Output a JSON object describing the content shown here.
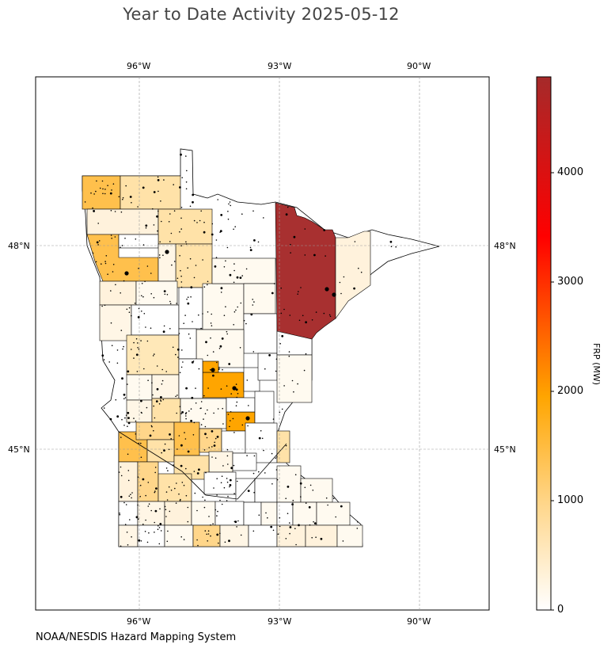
{
  "title": "Year to Date Activity 2025-05-12",
  "credit": "NOAA/NESDIS Hazard Mapping System",
  "map": {
    "lon_ticks_top": [
      "96°W",
      "93°W",
      "90°W"
    ],
    "lon_ticks_bottom": [
      "96°W",
      "93°W",
      "90°W"
    ],
    "lat_ticks_left": [
      "48°N",
      "45°N"
    ],
    "lat_ticks_right": [
      "48°N",
      "45°N"
    ],
    "lon_values": [
      -96,
      -93,
      -90
    ],
    "lat_values": [
      48,
      45
    ],
    "gridlines": true,
    "region": "Minnesota counties",
    "fire_detection_points": "black dots"
  },
  "colorbar": {
    "label": "FRP (MW)",
    "ticks": [
      "0",
      "1000",
      "2000",
      "3000",
      "4000"
    ],
    "tick_values": [
      0,
      1000,
      2000,
      3000,
      4000
    ],
    "min": 0,
    "max": 4870,
    "colors": [
      "#ffffff",
      "#ffd68a",
      "#ffa500",
      "#ff0000",
      "#a52a2a"
    ]
  }
}
